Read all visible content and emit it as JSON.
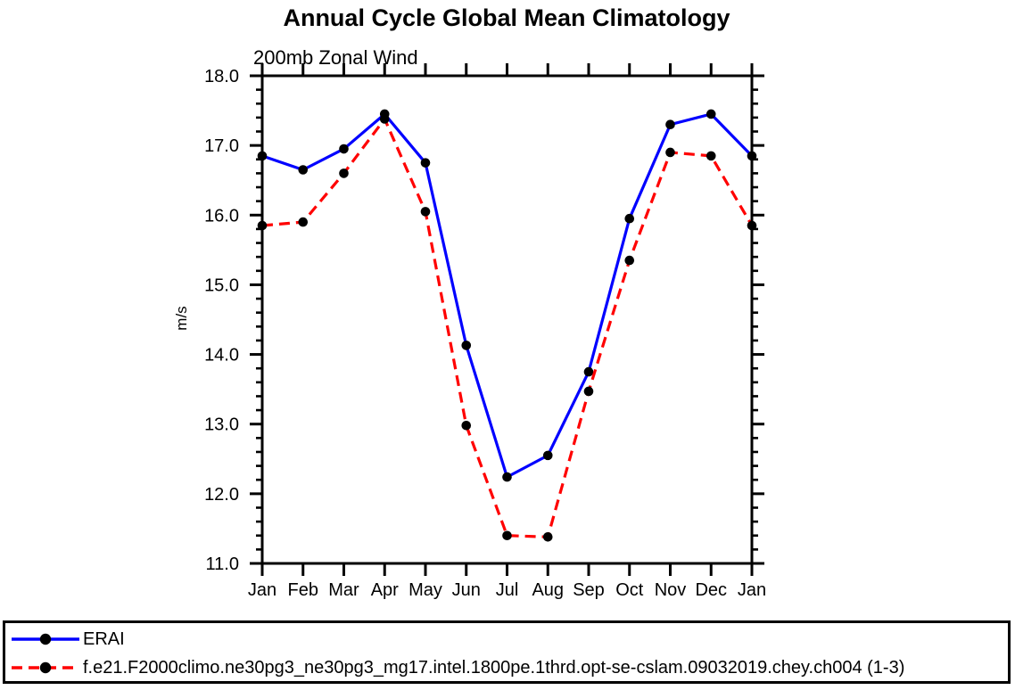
{
  "chart_data": {
    "type": "line",
    "title": "Annual Cycle Global Mean Climatology",
    "subtitle": "200mb Zonal Wind",
    "ylabel": "m/s",
    "categories": [
      "Jan",
      "Feb",
      "Mar",
      "Apr",
      "May",
      "Jun",
      "Jul",
      "Aug",
      "Sep",
      "Oct",
      "Nov",
      "Dec",
      "Jan"
    ],
    "ylim": [
      11.0,
      18.0
    ],
    "ytick_major": 1.0,
    "ytick_minor": 0.2,
    "ytick_decimals": 1,
    "grid": false,
    "legend_position": "bottom",
    "marker": {
      "shape": "circle",
      "color": "#000000"
    },
    "series": [
      {
        "name": "ERAI",
        "color": "#0000ff",
        "line_style": "solid",
        "values": [
          16.85,
          16.65,
          16.95,
          17.45,
          16.75,
          14.13,
          12.24,
          12.55,
          13.75,
          15.95,
          17.3,
          17.45,
          16.85
        ]
      },
      {
        "name": "f.e21.F2000climo.ne30pg3_ne30pg3_mg17.intel.1800pe.1thrd.opt-se-cslam.09032019.chey.ch004 (1-3)",
        "color": "#ff0000",
        "line_style": "dashed",
        "values": [
          15.85,
          15.9,
          16.6,
          17.38,
          16.05,
          12.98,
          11.4,
          11.38,
          13.47,
          15.35,
          16.9,
          16.85,
          15.85
        ]
      }
    ]
  }
}
